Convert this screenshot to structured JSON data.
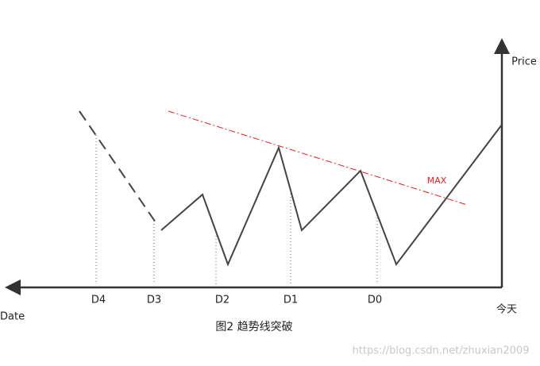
{
  "axes": {
    "y_label": "Price",
    "x_label": "Date",
    "today": "今天"
  },
  "dates": [
    "D4",
    "D3",
    "D2",
    "D1",
    "D0"
  ],
  "trendline_label": "MAX",
  "caption": "图2 趋势线突破",
  "watermark": "https://blog.csdn.net/zhuxian2009"
}
